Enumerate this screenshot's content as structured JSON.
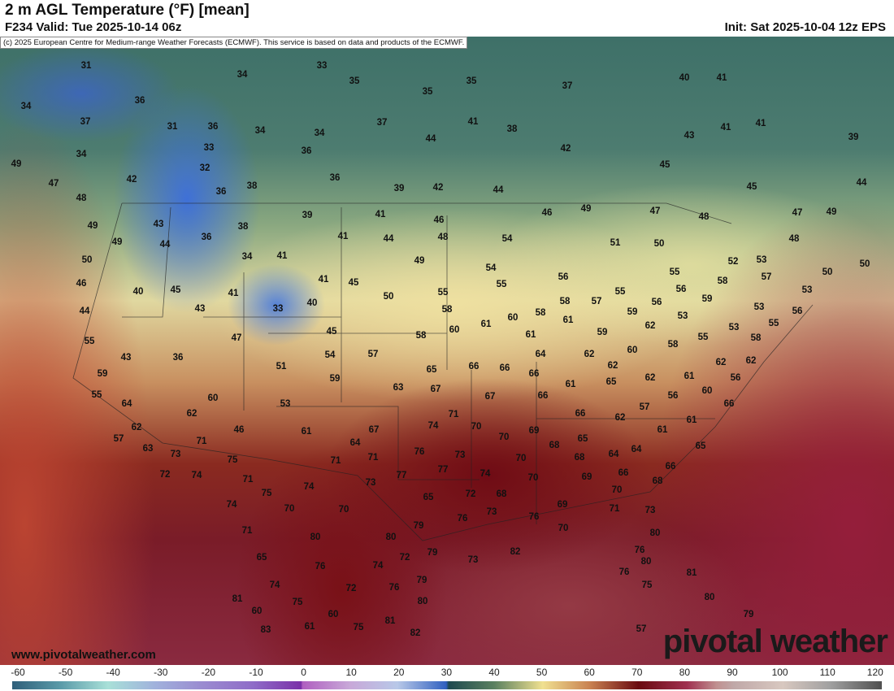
{
  "header": {
    "title": "2 m AGL Temperature (°F) [mean]",
    "valid": "F234 Valid: Tue 2025-10-14 06z",
    "init": "Init: Sat 2025-10-04 12z EPS"
  },
  "copyright": "(c) 2025 European Centre for Medium-range Weather Forecasts (ECMWF). This service is based on data and products of the ECMWF.",
  "watermark": {
    "site": "www.pivotalweather.com",
    "logo": "pivotal weather"
  },
  "colorbar": {
    "units": "°F",
    "ticks": [
      "-60",
      "-50",
      "-40",
      "-30",
      "-20",
      "-10",
      "0",
      "10",
      "20",
      "30",
      "40",
      "50",
      "60",
      "70",
      "80",
      "90",
      "100",
      "110",
      "120"
    ]
  },
  "temperature_labels": [
    "31",
    "33",
    "34",
    "35",
    "35",
    "37",
    "40",
    "41",
    "34",
    "36",
    "35",
    "37",
    "31",
    "36",
    "34",
    "34",
    "37",
    "41",
    "38",
    "41",
    "41",
    "39",
    "34",
    "33",
    "36",
    "44",
    "42",
    "43",
    "49",
    "32",
    "42",
    "36",
    "45",
    "47",
    "36",
    "38",
    "39",
    "42",
    "44",
    "45",
    "44",
    "48",
    "49",
    "47",
    "46",
    "48",
    "47",
    "49",
    "49",
    "43",
    "39",
    "41",
    "46",
    "38",
    "36",
    "41",
    "44",
    "48",
    "54",
    "51",
    "50",
    "48",
    "49",
    "44",
    "34",
    "41",
    "49",
    "54",
    "52",
    "53",
    "50",
    "50",
    "50",
    "40",
    "45",
    "41",
    "41",
    "45",
    "55",
    "57",
    "56",
    "55",
    "53",
    "56",
    "58",
    "46",
    "50",
    "55",
    "55",
    "57",
    "58",
    "59",
    "44",
    "43",
    "33",
    "40",
    "58",
    "56",
    "53",
    "56",
    "61",
    "58",
    "60",
    "61",
    "59",
    "62",
    "53",
    "55",
    "55",
    "47",
    "45",
    "58",
    "60",
    "61",
    "59",
    "55",
    "53",
    "58",
    "43",
    "36",
    "54",
    "57",
    "64",
    "62",
    "60",
    "58",
    "51",
    "65",
    "66",
    "66",
    "62",
    "59",
    "59",
    "63",
    "67",
    "66",
    "62",
    "61",
    "56",
    "61",
    "65",
    "62",
    "55",
    "64",
    "60",
    "53",
    "67",
    "66",
    "56",
    "60",
    "66",
    "57",
    "71",
    "74",
    "70",
    "66",
    "62",
    "61",
    "62",
    "46",
    "61",
    "67",
    "70",
    "69",
    "61",
    "57",
    "71",
    "62",
    "64",
    "76",
    "68",
    "65",
    "65",
    "64",
    "63",
    "73",
    "75",
    "71",
    "71",
    "73",
    "70",
    "68",
    "64",
    "74",
    "71",
    "77",
    "77",
    "74",
    "70",
    "69",
    "66",
    "66",
    "62",
    "72",
    "74",
    "73",
    "72",
    "68",
    "70",
    "68",
    "75",
    "74",
    "65",
    "70",
    "70",
    "69",
    "71",
    "73",
    "73",
    "76",
    "76",
    "79",
    "71",
    "80",
    "80",
    "70",
    "80",
    "82",
    "73",
    "79",
    "72",
    "76",
    "80",
    "65",
    "76",
    "74",
    "76",
    "79",
    "81",
    "74",
    "72",
    "76",
    "75",
    "81",
    "75",
    "80",
    "80",
    "60",
    "60",
    "81",
    "79",
    "83",
    "61",
    "75",
    "82",
    "57"
  ]
}
